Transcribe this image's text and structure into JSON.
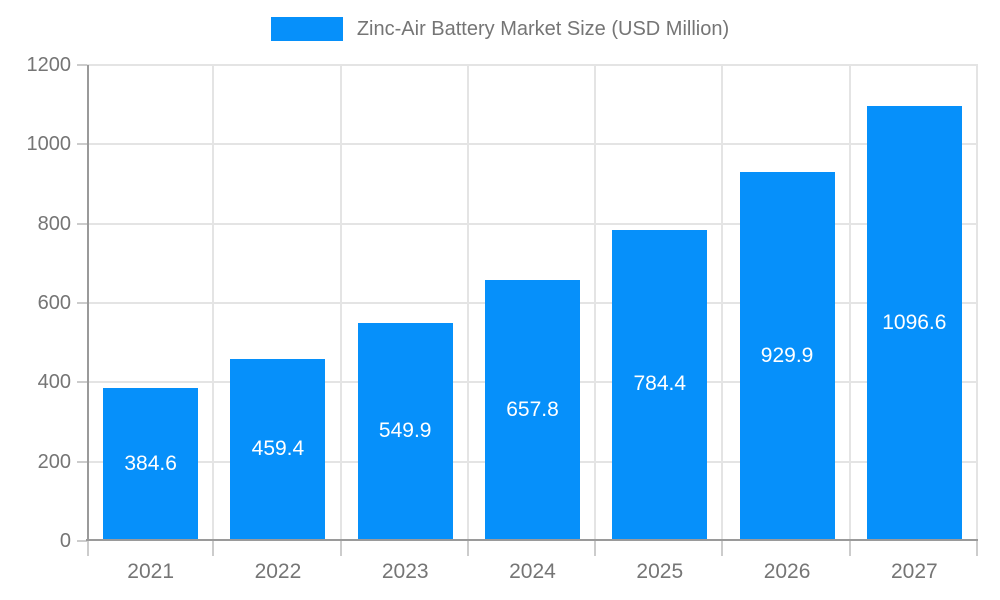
{
  "page": {
    "background": "#ffffff"
  },
  "legend": {
    "label": "Zinc-Air Battery Market Size (USD Million)"
  },
  "chart_data": {
    "type": "bar",
    "title": "Zinc-Air Battery Market Size (USD Million)",
    "categories": [
      "2021",
      "2022",
      "2023",
      "2024",
      "2025",
      "2026",
      "2027"
    ],
    "values": [
      384.6,
      459.4,
      549.9,
      657.8,
      784.4,
      929.9,
      1096.6
    ],
    "value_labels": [
      "384.6",
      "459.4",
      "549.9",
      "657.8",
      "784.4",
      "929.9",
      "1096.6"
    ],
    "xlabel": "",
    "ylabel": "",
    "ylim": [
      0,
      1200
    ],
    "ytick_step": 200,
    "ytick_labels": [
      "0",
      "200",
      "400",
      "600",
      "800",
      "1000",
      "1200"
    ],
    "grid": true,
    "legend_position": "top-center",
    "colors": {
      "bar": "#0690fa",
      "value_text": "#ffffff",
      "axis_line": "#9a9a9a",
      "gridline": "#e4e4e4",
      "tick_mark": "#cccccc",
      "tick_text": "#757575",
      "legend_text": "#757575"
    }
  }
}
